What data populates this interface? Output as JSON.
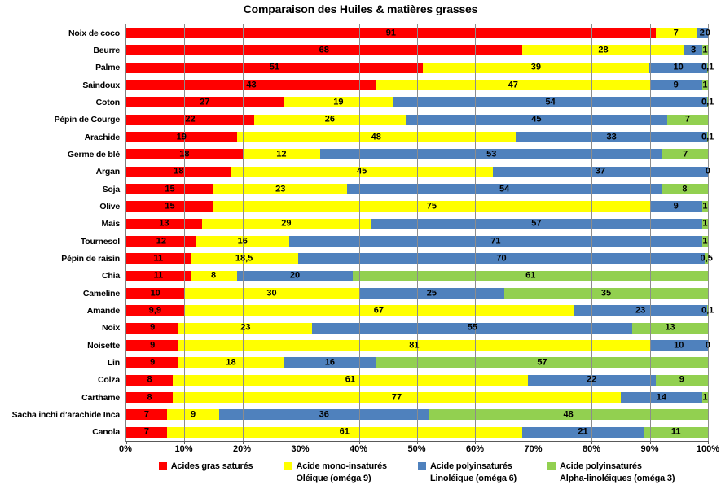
{
  "title": "Comparaison des Huiles & matières grasses",
  "chart_data": {
    "type": "bar",
    "variant": "100%-stacked-horizontal",
    "title": "Comparaison des Huiles & matières grasses",
    "xlabel": "",
    "ylabel": "",
    "xlim": [
      0,
      100
    ],
    "grid": true,
    "gridline_color": "#8c8c8c",
    "legend_position": "bottom",
    "x_ticks": [
      "0%",
      "10%",
      "20%",
      "30%",
      "40%",
      "50%",
      "60%",
      "70%",
      "80%",
      "90%",
      "100%"
    ],
    "categories": [
      "Noix de coco",
      "Beurre",
      "Palme",
      "Saindoux",
      "Coton",
      "Pépin de Courge",
      "Arachide",
      "Germe de blé",
      "Argan",
      "Soja",
      "Olive",
      "Mais",
      "Tournesol",
      "Pépin de raisin",
      "Chia",
      "Cameline",
      "Amande",
      "Noix",
      "Noisette",
      "Lin",
      "Colza",
      "Carthame",
      "Sacha inchi d’arachide Inca",
      "Canola"
    ],
    "series": [
      {
        "name": "Acides gras saturés",
        "color": "#FF0000",
        "values": [
          91,
          68,
          51,
          43,
          27,
          22,
          19,
          18,
          18,
          15,
          15,
          13,
          12,
          11,
          11,
          10,
          9.9,
          9,
          9,
          9,
          8,
          8,
          7,
          7
        ],
        "labels": [
          "91",
          "68",
          "51",
          "43",
          "27",
          "22",
          "19",
          "18",
          "18",
          "15",
          "15",
          "13",
          "12",
          "11",
          "11",
          "10",
          "9,9",
          "9",
          "9",
          "9",
          "8",
          "8",
          "7",
          "7"
        ]
      },
      {
        "name": "Acide mono-insaturés Oléique (oméga 9)",
        "color": "#FFFF00",
        "values": [
          7,
          28,
          39,
          47,
          19,
          26,
          48,
          12,
          45,
          23,
          75,
          29,
          16,
          18.5,
          8,
          30,
          67,
          23,
          81,
          18,
          61,
          77,
          9,
          61
        ],
        "labels": [
          "7",
          "28",
          "39",
          "47",
          "19",
          "26",
          "48",
          "12",
          "45",
          "23",
          "75",
          "29",
          "16",
          "18,5",
          "8",
          "30",
          "67",
          "23",
          "81",
          "18",
          "61",
          "77",
          "9",
          "61"
        ]
      },
      {
        "name": "Acide polyinsaturés Linoléique (oméga 6)",
        "color": "#4F81BD",
        "values": [
          2,
          3,
          10,
          9,
          54,
          45,
          33,
          53,
          37,
          54,
          9,
          57,
          71,
          70,
          20,
          25,
          23,
          55,
          10,
          16,
          22,
          14,
          36,
          21
        ],
        "labels": [
          "2",
          "3",
          "10",
          "9",
          "54",
          "45",
          "33",
          "53",
          "37",
          "54",
          "9",
          "57",
          "71",
          "70",
          "20",
          "25",
          "23",
          "55",
          "10",
          "16",
          "22",
          "14",
          "36",
          "21"
        ]
      },
      {
        "name": "Acide polyinsaturés Alpha-linoléiques (oméga 3)",
        "color": "#92D050",
        "values": [
          0,
          1,
          0.1,
          1,
          0.1,
          7,
          0.1,
          7,
          0,
          8,
          1,
          1,
          1,
          0.5,
          61,
          35,
          0.1,
          13,
          0,
          57,
          9,
          1,
          48,
          11
        ],
        "labels": [
          "0",
          "1",
          "0,1",
          "1",
          "0,1",
          "7",
          "0,1",
          "7",
          "0",
          "8",
          "1",
          "1",
          "1",
          "0,5",
          "61",
          "35",
          "0,1",
          "13",
          "0",
          "57",
          "9",
          "1",
          "48",
          "11"
        ]
      }
    ],
    "legend": [
      {
        "color": "#FF0000",
        "lines": [
          "Acides gras saturés"
        ]
      },
      {
        "color": "#FFFF00",
        "lines": [
          "Acide mono-insaturés",
          "Oléique (oméga 9)"
        ]
      },
      {
        "color": "#4F81BD",
        "lines": [
          "Acide polyinsaturés",
          "Linoléique (oméga 6)"
        ]
      },
      {
        "color": "#92D050",
        "lines": [
          "Acide polyinsaturés",
          "Alpha-linoléiques (oméga 3)"
        ]
      }
    ]
  }
}
